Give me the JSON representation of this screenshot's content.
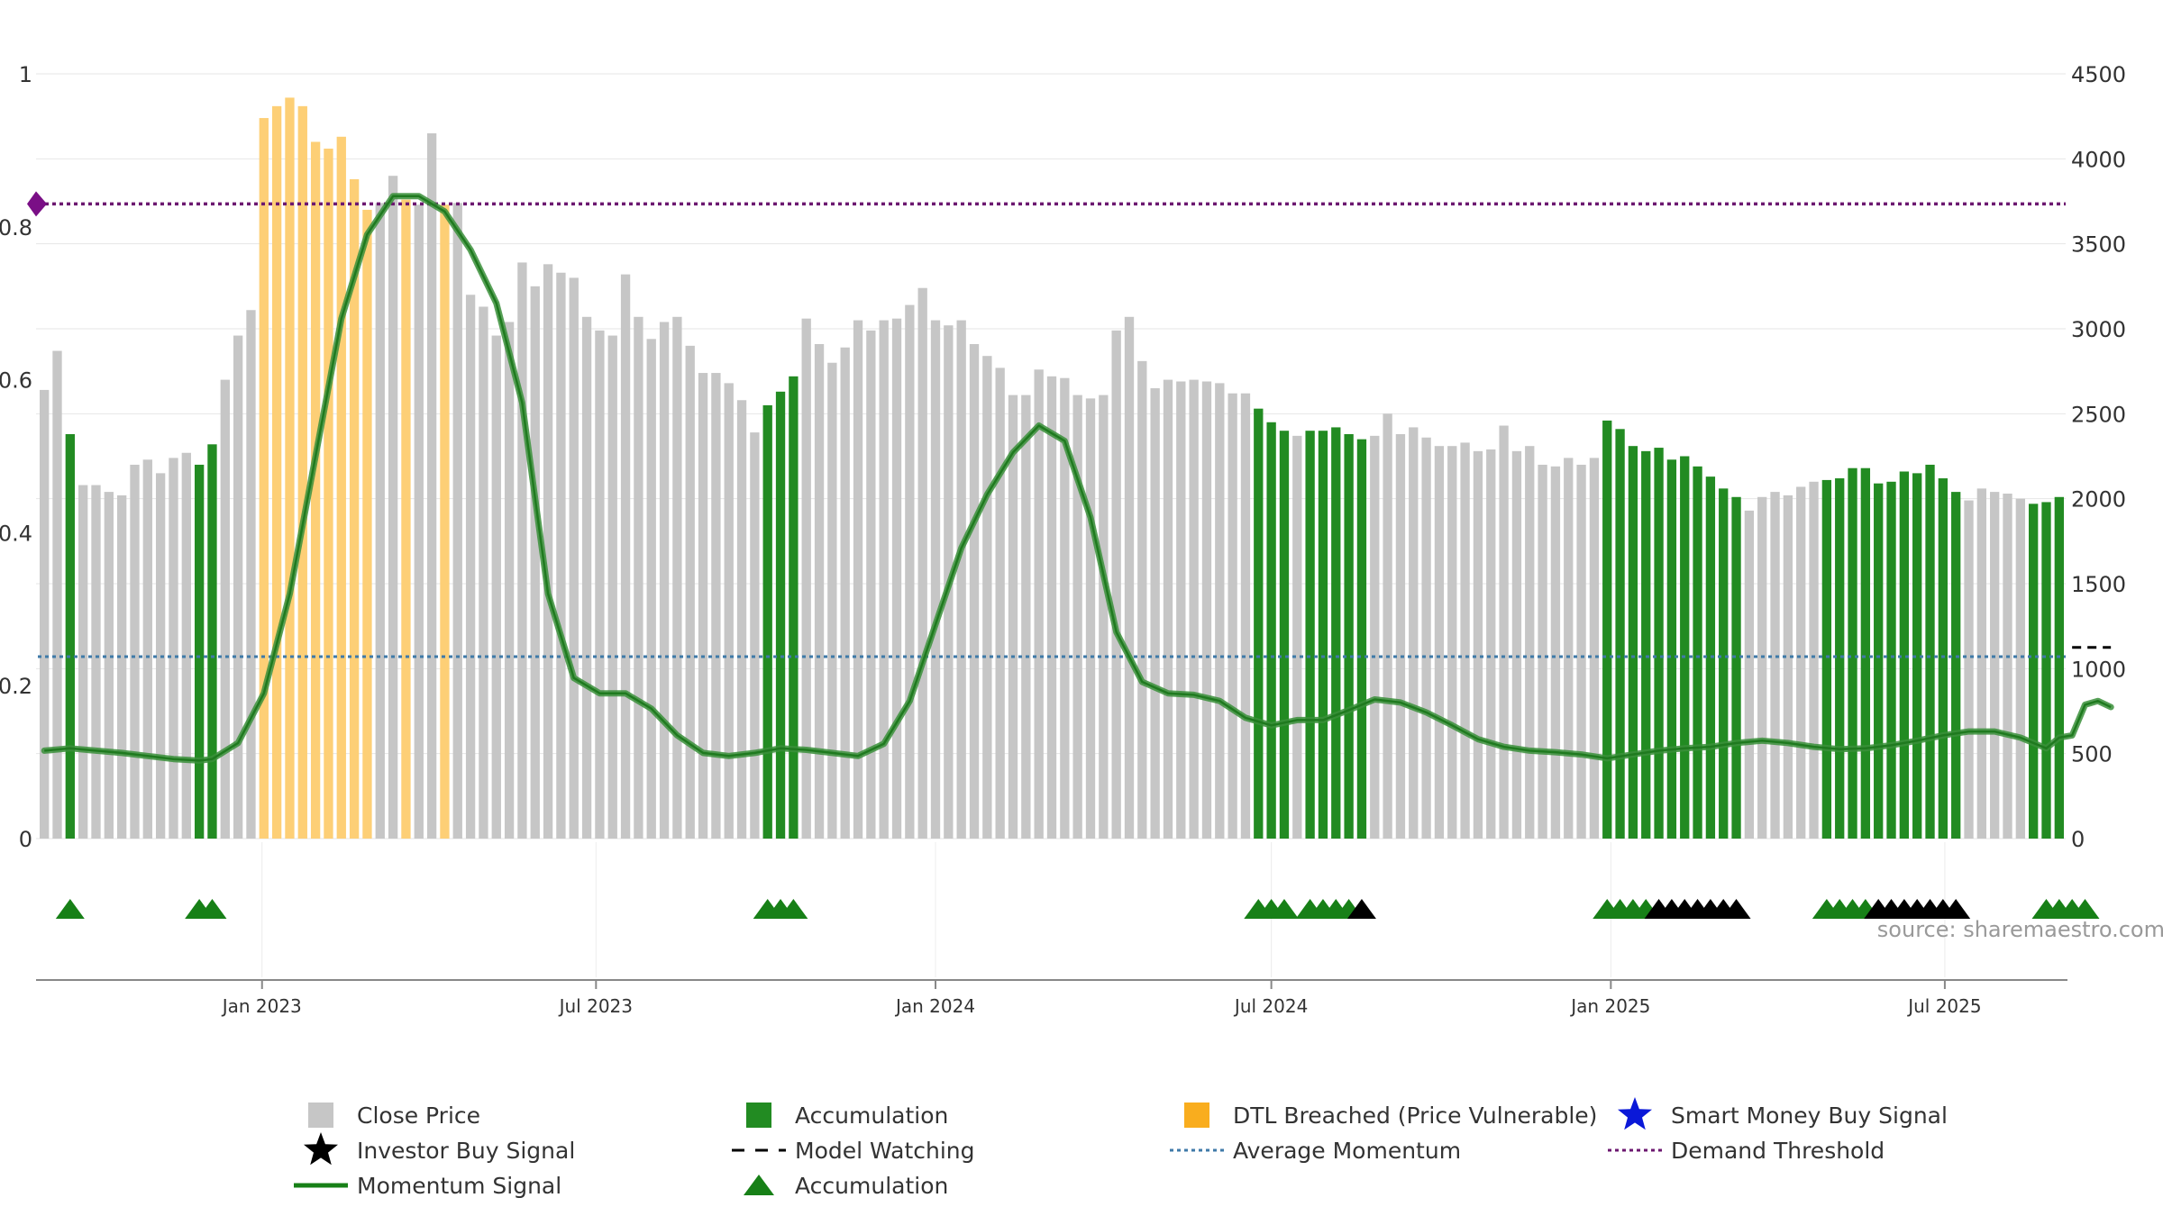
{
  "chart_data": {
    "type": "bar",
    "title": "",
    "source": "source: sharemaestro.com",
    "x_start": "2022-09-05",
    "x_step_days": 7,
    "x_ticks": [
      {
        "label": "Jan 2023",
        "date": "2023-01-01"
      },
      {
        "label": "Jul 2023",
        "date": "2023-07-01"
      },
      {
        "label": "Jan 2024",
        "date": "2024-01-01"
      },
      {
        "label": "Jul 2024",
        "date": "2024-07-01"
      },
      {
        "label": "Jan 2025",
        "date": "2025-01-01"
      },
      {
        "label": "Jul 2025",
        "date": "2025-07-01"
      }
    ],
    "y_left": {
      "min": 0,
      "max": 1,
      "ticks": [
        {
          "v": 0,
          "label": "0"
        },
        {
          "v": 0.2,
          "label": "0.2"
        },
        {
          "v": 0.4,
          "label": "0.4"
        },
        {
          "v": 0.6,
          "label": "0.6"
        },
        {
          "v": 0.8,
          "label": "0.8"
        },
        {
          "v": 1,
          "label": "1"
        }
      ]
    },
    "y_right": {
      "min": 0,
      "max": 4500,
      "ticks": [
        {
          "v": 0,
          "label": "0"
        },
        {
          "v": 500,
          "label": "500"
        },
        {
          "v": 1000,
          "label": "1000"
        },
        {
          "v": 1500,
          "label": "1500"
        },
        {
          "v": 2000,
          "label": "2000"
        },
        {
          "v": 2500,
          "label": "2500"
        },
        {
          "v": 3000,
          "label": "3000"
        },
        {
          "v": 3500,
          "label": "3500"
        },
        {
          "v": 4000,
          "label": "4000"
        },
        {
          "v": 4500,
          "label": "4500"
        }
      ]
    },
    "grid": true,
    "close_price": [
      2640,
      2870,
      2380,
      2080,
      2080,
      2040,
      2020,
      2200,
      2230,
      2150,
      2240,
      2270,
      2200,
      2320,
      2700,
      2960,
      3110,
      4240,
      4310,
      4360,
      4310,
      4100,
      4060,
      4130,
      3880,
      3700,
      3740,
      3900,
      3760,
      3730,
      4150,
      3730,
      3740,
      3200,
      3130,
      2960,
      3040,
      3390,
      3250,
      3380,
      3330,
      3300,
      3070,
      2990,
      2960,
      3320,
      3070,
      2940,
      3040,
      3070,
      2900,
      2740,
      2740,
      2680,
      2580,
      2390,
      2550,
      2630,
      2720,
      3060,
      2910,
      2800,
      2890,
      3050,
      2990,
      3050,
      3060,
      3140,
      3240,
      3050,
      3020,
      3050,
      2910,
      2840,
      2770,
      2610,
      2610,
      2760,
      2720,
      2710,
      2610,
      2590,
      2610,
      2990,
      3070,
      2810,
      2650,
      2700,
      2690,
      2700,
      2690,
      2680,
      2620,
      2620,
      2530,
      2450,
      2400,
      2370,
      2400,
      2400,
      2420,
      2380,
      2350,
      2370,
      2500,
      2380,
      2420,
      2360,
      2310,
      2310,
      2330,
      2280,
      2290,
      2430,
      2280,
      2310,
      2200,
      2190,
      2240,
      2200,
      2240,
      2460,
      2410,
      2310,
      2280,
      2300,
      2230,
      2250,
      2190,
      2130,
      2060,
      2010,
      1930,
      2010,
      2040,
      2020,
      2070,
      2100,
      2110,
      2120,
      2180,
      2180,
      2090,
      2100,
      2160,
      2150,
      2200,
      2120,
      2040,
      1990,
      2060,
      2040,
      2030,
      2000,
      1970,
      1980,
      2010
    ],
    "accumulation_bar_index": [
      2,
      12,
      13,
      56,
      57,
      58,
      94,
      95,
      96,
      98,
      99,
      100,
      101,
      102,
      121,
      122,
      123,
      124,
      125,
      126,
      127,
      128,
      129,
      130,
      131,
      138,
      139,
      140,
      141,
      142,
      143,
      144,
      145,
      146,
      147,
      148,
      154,
      155,
      156,
      157,
      158
    ],
    "dtl_breached_bar_index": [
      17,
      18,
      19,
      20,
      21,
      22,
      23,
      24,
      25,
      28,
      31
    ],
    "momentum_signal": [
      [
        0,
        0.115
      ],
      [
        2,
        0.118
      ],
      [
        4,
        0.115
      ],
      [
        6,
        0.112
      ],
      [
        8,
        0.108
      ],
      [
        10,
        0.104
      ],
      [
        12,
        0.102
      ],
      [
        13,
        0.104
      ],
      [
        15,
        0.125
      ],
      [
        17,
        0.19
      ],
      [
        19,
        0.32
      ],
      [
        21,
        0.5
      ],
      [
        23,
        0.68
      ],
      [
        25,
        0.79
      ],
      [
        27,
        0.84
      ],
      [
        29,
        0.84
      ],
      [
        31,
        0.82
      ],
      [
        33,
        0.77
      ],
      [
        35,
        0.7
      ],
      [
        37,
        0.57
      ],
      [
        39,
        0.32
      ],
      [
        41,
        0.21
      ],
      [
        43,
        0.19
      ],
      [
        45,
        0.19
      ],
      [
        47,
        0.17
      ],
      [
        49,
        0.135
      ],
      [
        51,
        0.112
      ],
      [
        53,
        0.108
      ],
      [
        55,
        0.112
      ],
      [
        57,
        0.118
      ],
      [
        59,
        0.116
      ],
      [
        61,
        0.112
      ],
      [
        63,
        0.108
      ],
      [
        65,
        0.124
      ],
      [
        67,
        0.18
      ],
      [
        69,
        0.28
      ],
      [
        71,
        0.38
      ],
      [
        73,
        0.45
      ],
      [
        75,
        0.505
      ],
      [
        77,
        0.54
      ],
      [
        79,
        0.52
      ],
      [
        81,
        0.42
      ],
      [
        83,
        0.27
      ],
      [
        85,
        0.205
      ],
      [
        87,
        0.19
      ],
      [
        89,
        0.188
      ],
      [
        91,
        0.18
      ],
      [
        93,
        0.158
      ],
      [
        95,
        0.148
      ],
      [
        97,
        0.155
      ],
      [
        99,
        0.155
      ],
      [
        101,
        0.168
      ],
      [
        103,
        0.182
      ],
      [
        105,
        0.178
      ],
      [
        107,
        0.165
      ],
      [
        109,
        0.148
      ],
      [
        111,
        0.13
      ],
      [
        113,
        0.12
      ],
      [
        115,
        0.115
      ],
      [
        117,
        0.113
      ],
      [
        119,
        0.11
      ],
      [
        121,
        0.105
      ],
      [
        123,
        0.11
      ],
      [
        125,
        0.115
      ],
      [
        127,
        0.118
      ],
      [
        129,
        0.12
      ],
      [
        131,
        0.125
      ],
      [
        133,
        0.128
      ],
      [
        135,
        0.125
      ],
      [
        137,
        0.12
      ],
      [
        139,
        0.117
      ],
      [
        141,
        0.118
      ],
      [
        143,
        0.122
      ],
      [
        145,
        0.128
      ],
      [
        147,
        0.135
      ],
      [
        149,
        0.14
      ],
      [
        151,
        0.14
      ],
      [
        153,
        0.132
      ],
      [
        155,
        0.118
      ],
      [
        156,
        0.132
      ],
      [
        157,
        0.135
      ],
      [
        158,
        0.175
      ],
      [
        159,
        0.18
      ],
      [
        160,
        0.172
      ]
    ],
    "average_momentum": 0.238,
    "demand_threshold": 0.83,
    "model_watching": {
      "value": 0.25,
      "bar_range": [
        157,
        160
      ]
    },
    "accumulation_markers_index": [
      2,
      12,
      13,
      56,
      57,
      58,
      94,
      95,
      96,
      98,
      99,
      100,
      101,
      121,
      122,
      123,
      124,
      138,
      139,
      140,
      141,
      155,
      156,
      157,
      158
    ],
    "investor_buy_markers_index": [
      102,
      125,
      126,
      127,
      128,
      129,
      130,
      131,
      142,
      143,
      144,
      145,
      146,
      147,
      148
    ],
    "colors": {
      "close_price": "#c6c6c6",
      "accumulation": "#228b22",
      "dtl_breached": "#fdcf76",
      "momentum": "#2d8a2d",
      "average_momentum": "#3f7aa8",
      "demand_threshold": "#6c1870",
      "investor_buy": "#000000",
      "smart_money": "#0a18d8",
      "source": "#999999"
    },
    "legend": [
      {
        "key": "close",
        "label": "Close Price",
        "symbol": "square",
        "color": "#c6c6c6"
      },
      {
        "key": "accum",
        "label": "Accumulation",
        "symbol": "square",
        "color": "#228b22"
      },
      {
        "key": "dtl",
        "label": "DTL Breached (Price Vulnerable)",
        "symbol": "square",
        "color": "#f9ad1e"
      },
      {
        "key": "smart",
        "label": "Smart Money Buy Signal",
        "symbol": "star",
        "color": "#0a18d8"
      },
      {
        "key": "investor",
        "label": "Investor Buy Signal",
        "symbol": "star",
        "color": "#000000"
      },
      {
        "key": "watch",
        "label": "Model Watching",
        "symbol": "dash",
        "color": "#000000"
      },
      {
        "key": "avg",
        "label": "Average Momentum",
        "symbol": "dot",
        "color": "#3f7aa8"
      },
      {
        "key": "demand",
        "label": "Demand Threshold",
        "symbol": "dot",
        "color": "#6c1870"
      },
      {
        "key": "momentum",
        "label": "Momentum Signal",
        "symbol": "line",
        "color": "#178017"
      },
      {
        "key": "accum_marker",
        "label": "Accumulation",
        "symbol": "triangle",
        "color": "#178017"
      }
    ]
  }
}
